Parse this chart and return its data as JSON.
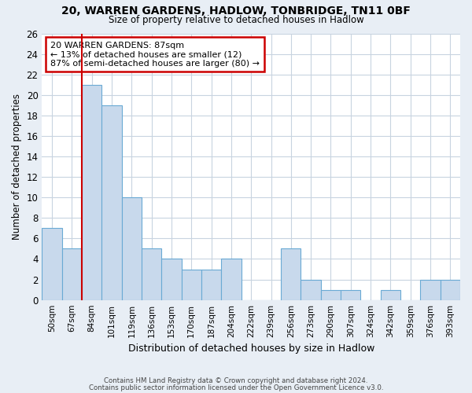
{
  "title1": "20, WARREN GARDENS, HADLOW, TONBRIDGE, TN11 0BF",
  "title2": "Size of property relative to detached houses in Hadlow",
  "xlabel": "Distribution of detached houses by size in Hadlow",
  "ylabel": "Number of detached properties",
  "bar_color": "#c8d9ec",
  "bar_edge_color": "#6aaad4",
  "highlight_line_color": "#cc0000",
  "annotation_box_color": "#cc0000",
  "categories": [
    "50sqm",
    "67sqm",
    "84sqm",
    "101sqm",
    "119sqm",
    "136sqm",
    "153sqm",
    "170sqm",
    "187sqm",
    "204sqm",
    "222sqm",
    "239sqm",
    "256sqm",
    "273sqm",
    "290sqm",
    "307sqm",
    "324sqm",
    "342sqm",
    "359sqm",
    "376sqm",
    "393sqm"
  ],
  "values": [
    7,
    5,
    21,
    19,
    10,
    5,
    4,
    3,
    3,
    4,
    0,
    0,
    5,
    2,
    1,
    1,
    0,
    1,
    0,
    2,
    2
  ],
  "property_bin_index": 2,
  "annotation_title": "20 WARREN GARDENS: 87sqm",
  "annotation_line1": "← 13% of detached houses are smaller (12)",
  "annotation_line2": "87% of semi-detached houses are larger (80) →",
  "ylim": [
    0,
    26
  ],
  "yticks": [
    0,
    2,
    4,
    6,
    8,
    10,
    12,
    14,
    16,
    18,
    20,
    22,
    24,
    26
  ],
  "footer1": "Contains HM Land Registry data © Crown copyright and database right 2024.",
  "footer2": "Contains public sector information licensed under the Open Government Licence v3.0.",
  "fig_background_color": "#e8eef5",
  "plot_background_color": "#ffffff",
  "grid_color": "#c8d4e0"
}
